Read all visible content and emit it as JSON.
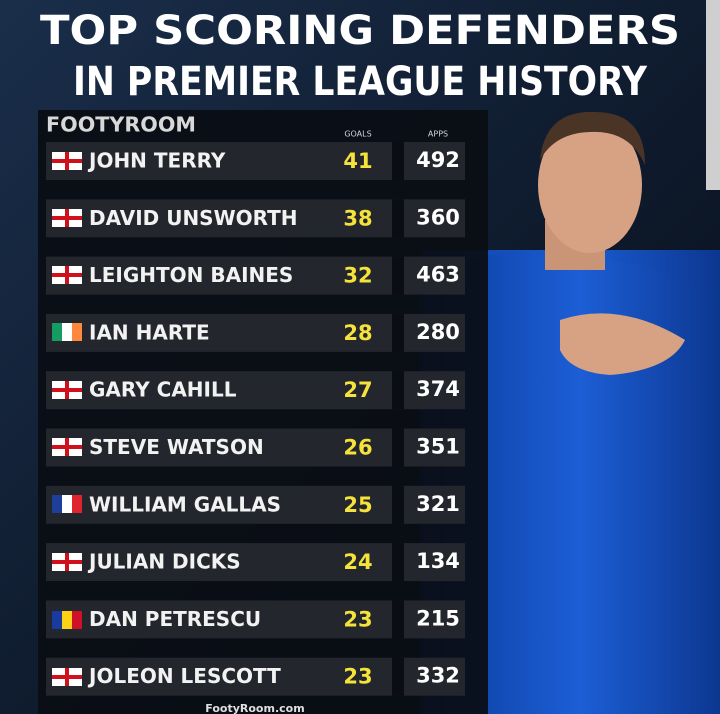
{
  "header": {
    "title_line1": "TOP SCORING DEFENDERS",
    "title_line2": "IN PREMIER LEAGUE HISTORY"
  },
  "brand": "FOOTYROOM",
  "table": {
    "columns": [
      "GOALS",
      "APPS"
    ],
    "rows": [
      [
        "JOHN TERRY",
        41,
        492
      ],
      [
        "DAVID UNSWORTH",
        38,
        360
      ],
      [
        "LEIGHTON BAINES",
        32,
        463
      ],
      [
        "IAN HARTE",
        28,
        280
      ],
      [
        "GARY CAHILL",
        27,
        374
      ],
      [
        "STEVE WATSON",
        26,
        351
      ],
      [
        "WILLIAM GALLAS",
        25,
        321
      ],
      [
        "JULIAN DICKS",
        24,
        134
      ],
      [
        "DAN PETRESCU",
        23,
        215
      ],
      [
        "JOLEON LESCOTT",
        23,
        332
      ]
    ]
  },
  "footer": "FootyRoom.com"
}
